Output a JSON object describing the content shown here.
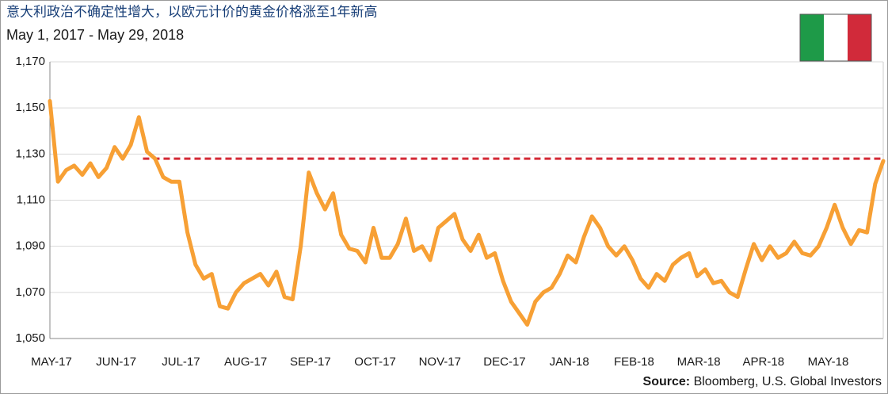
{
  "chart_data": {
    "type": "line",
    "title": "意大利政治不确定性增大，以欧元计价的黄金价格涨至1年新高",
    "subtitle": "May 1, 2017 - May 29, 2018",
    "source_label": "Source:",
    "source": "Bloomberg, U.S. Global Investors",
    "color": "#f7a035",
    "reference_line": {
      "value": 1128,
      "color": "#d42a36"
    },
    "grid": true,
    "ylim": [
      1050,
      1170
    ],
    "yticks": [
      {
        "value": 1050,
        "label": "1,050"
      },
      {
        "value": 1070,
        "label": "1,070"
      },
      {
        "value": 1090,
        "label": "1,090"
      },
      {
        "value": 1110,
        "label": "1,110"
      },
      {
        "value": 1130,
        "label": "1,130"
      },
      {
        "value": 1150,
        "label": "1,150"
      },
      {
        "value": 1170,
        "label": "1,170"
      }
    ],
    "categories": [
      "MAY-17",
      null,
      null,
      null,
      null,
      null,
      null,
      null,
      "JUN-17",
      null,
      null,
      null,
      null,
      null,
      null,
      null,
      "JUL-17",
      null,
      null,
      null,
      null,
      null,
      null,
      null,
      "AUG-17",
      null,
      null,
      null,
      null,
      null,
      null,
      null,
      "SEP-17",
      null,
      null,
      null,
      null,
      null,
      null,
      null,
      "OCT-17",
      null,
      null,
      null,
      null,
      null,
      null,
      null,
      "NOV-17",
      null,
      null,
      null,
      null,
      null,
      null,
      null,
      "DEC-17",
      null,
      null,
      null,
      null,
      null,
      null,
      null,
      "JAN-18",
      null,
      null,
      null,
      null,
      null,
      null,
      null,
      "FEB-18",
      null,
      null,
      null,
      null,
      null,
      null,
      null,
      "MAR-18",
      null,
      null,
      null,
      null,
      null,
      null,
      null,
      "APR-18",
      null,
      null,
      null,
      null,
      null,
      null,
      null,
      "MAY-18",
      null,
      null,
      null,
      null,
      null,
      null,
      null
    ],
    "values": [
      1153,
      1118,
      1123,
      1125,
      1121,
      1126,
      1120,
      1124,
      1133,
      1128,
      1134,
      1146,
      1131,
      1128,
      1120,
      1118,
      1118,
      1096,
      1082,
      1076,
      1078,
      1064,
      1063,
      1070,
      1074,
      1076,
      1078,
      1073,
      1079,
      1068,
      1067,
      1090,
      1122,
      1113,
      1106,
      1113,
      1095,
      1089,
      1088,
      1083,
      1098,
      1085,
      1085,
      1091,
      1102,
      1088,
      1090,
      1084,
      1098,
      1101,
      1104,
      1093,
      1088,
      1095,
      1085,
      1087,
      1075,
      1066,
      1061,
      1056,
      1066,
      1070,
      1072,
      1078,
      1086,
      1083,
      1094,
      1103,
      1098,
      1090,
      1086,
      1090,
      1084,
      1076,
      1072,
      1078,
      1075,
      1082,
      1085,
      1087,
      1077,
      1080,
      1074,
      1075,
      1070,
      1068,
      1080,
      1091,
      1084,
      1090,
      1085,
      1087,
      1092,
      1087,
      1086,
      1090,
      1098,
      1108,
      1098,
      1091,
      1097,
      1096,
      1117,
      1127
    ]
  }
}
